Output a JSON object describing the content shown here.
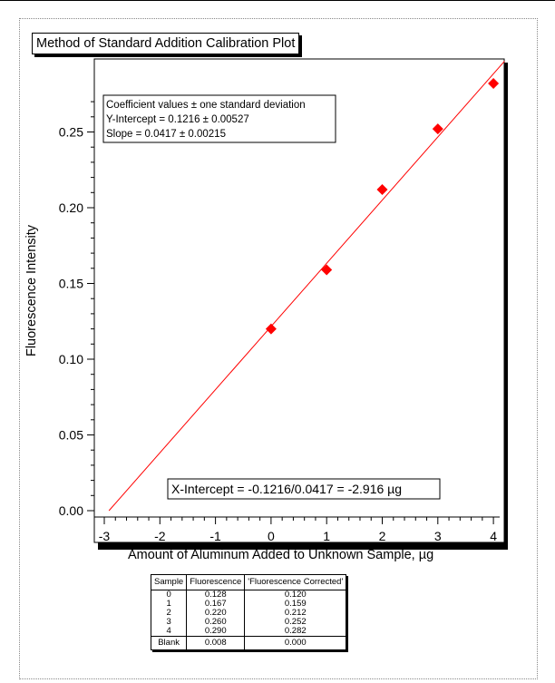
{
  "chart_data": {
    "type": "scatter",
    "title": "Method of Standard Addition Calibration Plot",
    "xlabel": "Amount of Aluminum Added to Unknown Sample, µg",
    "ylabel": "Fluorescence Intensity",
    "xlim": [
      -3.2,
      4.1
    ],
    "ylim": [
      -0.005,
      0.285
    ],
    "grid": true,
    "x_ticks": [
      -3,
      -2,
      -1,
      0,
      1,
      2,
      3,
      4
    ],
    "x_tick_labels": [
      "-3",
      "-2",
      "-1",
      "0",
      "1",
      "2",
      "3",
      "4"
    ],
    "y_ticks": [
      0.0,
      0.05,
      0.1,
      0.15,
      0.2,
      0.25
    ],
    "y_tick_labels": [
      "0.00",
      "0.05",
      "0.10",
      "0.15",
      "0.20",
      "0.25"
    ],
    "series": [
      {
        "x": [
          0,
          1,
          2,
          3,
          4
        ],
        "y": [
          0.12,
          0.159,
          0.212,
          0.252,
          0.282
        ],
        "color": "#ff0000",
        "marker": "diamond"
      }
    ],
    "fit_line": {
      "intercept": 0.1216,
      "slope": 0.0417,
      "x_range": [
        -2.916,
        4.2
      ],
      "color": "#ff0000"
    },
    "annotations": {
      "coef_lines": [
        "Coefficient values ± one standard deviation",
        "Y-Intercept = 0.1216 ± 0.00527",
        "Slope = 0.0417 ± 0.00215"
      ],
      "x_intercept": "X-Intercept = -0.1216/0.0417 = -2.916 µg"
    }
  },
  "table": {
    "headers": [
      "Sample",
      "Fluorescence",
      "'Fluorescence Corrected'"
    ],
    "rows": [
      [
        "0",
        "0.128",
        "0.120"
      ],
      [
        "1",
        "0.167",
        "0.159"
      ],
      [
        "2",
        "0.220",
        "0.212"
      ],
      [
        "3",
        "0.260",
        "0.252"
      ],
      [
        "4",
        "0.290",
        "0.282"
      ]
    ],
    "blank_row": [
      "Blank",
      "0.008",
      "0.000"
    ]
  }
}
